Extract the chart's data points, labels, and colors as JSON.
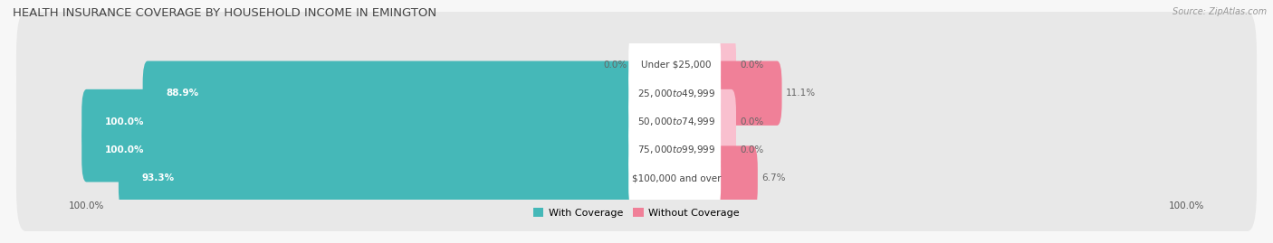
{
  "title": "HEALTH INSURANCE COVERAGE BY HOUSEHOLD INCOME IN EMINGTON",
  "source": "Source: ZipAtlas.com",
  "categories": [
    "Under $25,000",
    "$25,000 to $49,999",
    "$50,000 to $74,999",
    "$75,000 to $99,999",
    "$100,000 and over"
  ],
  "with_coverage": [
    0.0,
    88.9,
    100.0,
    100.0,
    93.3
  ],
  "without_coverage": [
    0.0,
    11.1,
    0.0,
    0.0,
    6.7
  ],
  "with_coverage_labels": [
    "0.0%",
    "88.9%",
    "100.0%",
    "100.0%",
    "93.3%"
  ],
  "without_coverage_labels": [
    "0.0%",
    "11.1%",
    "0.0%",
    "0.0%",
    "6.7%"
  ],
  "color_with": "#45b8b8",
  "color_without": "#f08098",
  "color_without_light": "#f9c0cf",
  "bg_row": "#eeeeee",
  "title_fontsize": 9.5,
  "label_fontsize": 7.5,
  "tick_fontsize": 7.5,
  "legend_fontsize": 8,
  "figsize": [
    14.06,
    2.69
  ],
  "dpi": 100,
  "left_tick_label": "100.0%",
  "right_tick_label": "100.0%"
}
